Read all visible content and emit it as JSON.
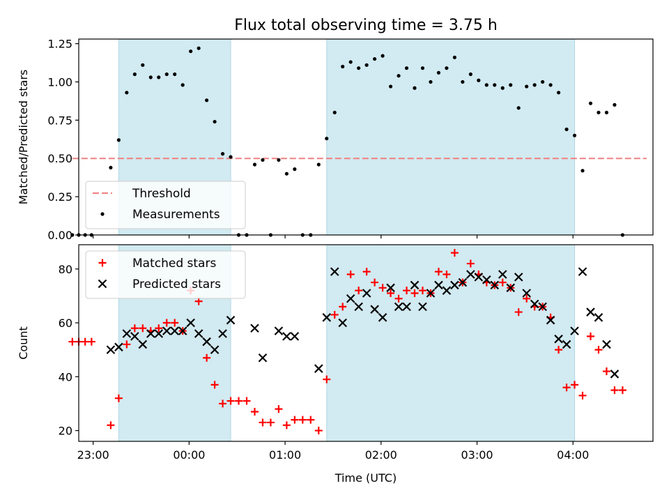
{
  "chart_data": [
    {
      "type": "scatter",
      "title": "Flux total observing time = 3.75 h",
      "xlabel": "",
      "ylabel": "Matched/Predicted stars",
      "ylim": [
        0,
        1.28
      ],
      "yticks": [
        "0.00",
        "0.25",
        "0.50",
        "0.75",
        "1.00",
        "1.25"
      ],
      "xlim": [
        "22:51",
        "04:50"
      ],
      "xticks": [
        "23:00",
        "00:00",
        "01:00",
        "02:00",
        "03:00",
        "04:00"
      ],
      "grid": false,
      "legend_position": "lower-left",
      "observing_windows": [
        [
          "23:16",
          "00:26"
        ],
        [
          "01:26",
          "04:01"
        ]
      ],
      "series": [
        {
          "name": "Threshold",
          "style": "dashed-line",
          "color": "#f08080",
          "x": [
            "22:47",
            "04:46"
          ],
          "y": [
            0.5,
            0.5
          ]
        },
        {
          "name": "Measurements",
          "style": "dot",
          "color": "#000000",
          "x": [
            "22:47",
            "22:51",
            "22:55",
            "22:59",
            "23:11",
            "23:16",
            "23:21",
            "23:26",
            "23:31",
            "23:36",
            "23:41",
            "23:46",
            "23:51",
            "23:56",
            "00:01",
            "00:06",
            "00:11",
            "00:16",
            "00:21",
            "00:26",
            "00:31",
            "00:36",
            "00:41",
            "00:46",
            "00:51",
            "00:56",
            "01:01",
            "01:06",
            "01:11",
            "01:16",
            "01:21",
            "01:26",
            "01:31",
            "01:36",
            "01:41",
            "01:46",
            "01:51",
            "01:56",
            "02:01",
            "02:06",
            "02:11",
            "02:16",
            "02:21",
            "02:26",
            "02:31",
            "02:36",
            "02:41",
            "02:46",
            "02:51",
            "02:56",
            "03:01",
            "03:06",
            "03:11",
            "03:16",
            "03:21",
            "03:26",
            "03:31",
            "03:36",
            "03:41",
            "03:46",
            "03:51",
            "03:56",
            "04:01",
            "04:06",
            "04:11",
            "04:16",
            "04:21",
            "04:26",
            "04:31"
          ],
          "y": [
            0,
            0,
            0,
            0,
            0.44,
            0.62,
            0.93,
            1.05,
            1.11,
            1.03,
            1.03,
            1.05,
            1.05,
            0.98,
            1.2,
            1.22,
            0.88,
            0.74,
            0.53,
            0.51,
            0,
            0,
            0.46,
            0.49,
            0,
            0.49,
            0.4,
            0.43,
            0,
            0,
            0.46,
            0.63,
            0.8,
            1.1,
            1.13,
            1.09,
            1.11,
            1.15,
            1.17,
            0.97,
            1.04,
            1.09,
            0.96,
            1.09,
            1.0,
            1.06,
            1.09,
            1.16,
            1.0,
            1.05,
            1.01,
            0.98,
            0.98,
            0.96,
            0.98,
            0.83,
            0.97,
            0.98,
            1.0,
            0.98,
            0.93,
            0.69,
            0.65,
            0.42,
            0.86,
            0.8,
            0.8,
            0.85,
            0
          ]
        }
      ]
    },
    {
      "type": "scatter",
      "title": "",
      "xlabel": "Time (UTC)",
      "ylabel": "Count",
      "ylim": [
        16,
        89
      ],
      "yticks": [
        "20",
        "40",
        "60",
        "80"
      ],
      "xlim": [
        "22:51",
        "04:50"
      ],
      "xticks": [
        "23:00",
        "00:00",
        "01:00",
        "02:00",
        "03:00",
        "04:00"
      ],
      "grid": false,
      "legend_position": "upper-left",
      "observing_windows": [
        [
          "23:16",
          "00:26"
        ],
        [
          "01:26",
          "04:01"
        ]
      ],
      "series": [
        {
          "name": "Matched stars",
          "style": "plus",
          "color": "#ff0000",
          "x": [
            "22:47",
            "22:51",
            "22:55",
            "22:59",
            "23:11",
            "23:16",
            "23:21",
            "23:26",
            "23:31",
            "23:36",
            "23:41",
            "23:46",
            "23:51",
            "23:56",
            "00:01",
            "00:06",
            "00:11",
            "00:16",
            "00:21",
            "00:26",
            "00:31",
            "00:36",
            "00:41",
            "00:46",
            "00:51",
            "00:56",
            "01:01",
            "01:06",
            "01:11",
            "01:16",
            "01:21",
            "01:26",
            "01:31",
            "01:36",
            "01:41",
            "01:46",
            "01:51",
            "01:56",
            "02:01",
            "02:06",
            "02:11",
            "02:16",
            "02:21",
            "02:26",
            "02:31",
            "02:36",
            "02:41",
            "02:46",
            "02:51",
            "02:56",
            "03:01",
            "03:06",
            "03:11",
            "03:16",
            "03:21",
            "03:26",
            "03:31",
            "03:36",
            "03:41",
            "03:46",
            "03:51",
            "03:56",
            "04:01",
            "04:06",
            "04:11",
            "04:16",
            "04:21",
            "04:26",
            "04:31"
          ],
          "y": [
            53,
            53,
            53,
            53,
            22,
            32,
            52,
            58,
            58,
            57,
            58,
            60,
            60,
            57,
            72,
            68,
            47,
            37,
            30,
            31,
            31,
            31,
            27,
            23,
            23,
            28,
            22,
            24,
            24,
            24,
            20,
            39,
            63,
            66,
            78,
            72,
            79,
            75,
            73,
            71,
            69,
            72,
            71,
            72,
            71,
            79,
            78,
            86,
            75,
            82,
            78,
            75,
            74,
            75,
            73,
            64,
            69,
            66,
            66,
            62,
            50,
            36,
            37,
            33,
            55,
            50,
            42,
            35,
            35
          ]
        },
        {
          "name": "Predicted stars",
          "style": "cross",
          "color": "#000000",
          "x": [
            "23:11",
            "23:16",
            "23:21",
            "23:26",
            "23:31",
            "23:36",
            "23:41",
            "23:46",
            "23:51",
            "23:56",
            "00:01",
            "00:06",
            "00:11",
            "00:16",
            "00:21",
            "00:26",
            "00:41",
            "00:46",
            "00:56",
            "01:01",
            "01:06",
            "01:21",
            "01:26",
            "01:31",
            "01:36",
            "01:41",
            "01:46",
            "01:51",
            "01:56",
            "02:01",
            "02:06",
            "02:11",
            "02:16",
            "02:21",
            "02:26",
            "02:31",
            "02:36",
            "02:41",
            "02:46",
            "02:51",
            "02:56",
            "03:01",
            "03:06",
            "03:11",
            "03:16",
            "03:21",
            "03:26",
            "03:31",
            "03:36",
            "03:41",
            "03:46",
            "03:51",
            "03:56",
            "04:01",
            "04:06",
            "04:11",
            "04:16",
            "04:21",
            "04:26"
          ],
          "y": [
            50,
            51,
            56,
            55,
            52,
            56,
            56,
            57,
            57,
            57,
            60,
            56,
            53,
            50,
            56,
            61,
            58,
            47,
            57,
            55,
            55,
            43,
            62,
            79,
            60,
            69,
            66,
            71,
            65,
            62,
            73,
            66,
            66,
            74,
            66,
            71,
            74,
            72,
            74,
            75,
            78,
            77,
            76,
            74,
            78,
            73,
            77,
            71,
            67,
            66,
            61,
            54,
            52,
            57,
            79,
            64,
            62,
            52,
            41
          ]
        }
      ]
    }
  ]
}
